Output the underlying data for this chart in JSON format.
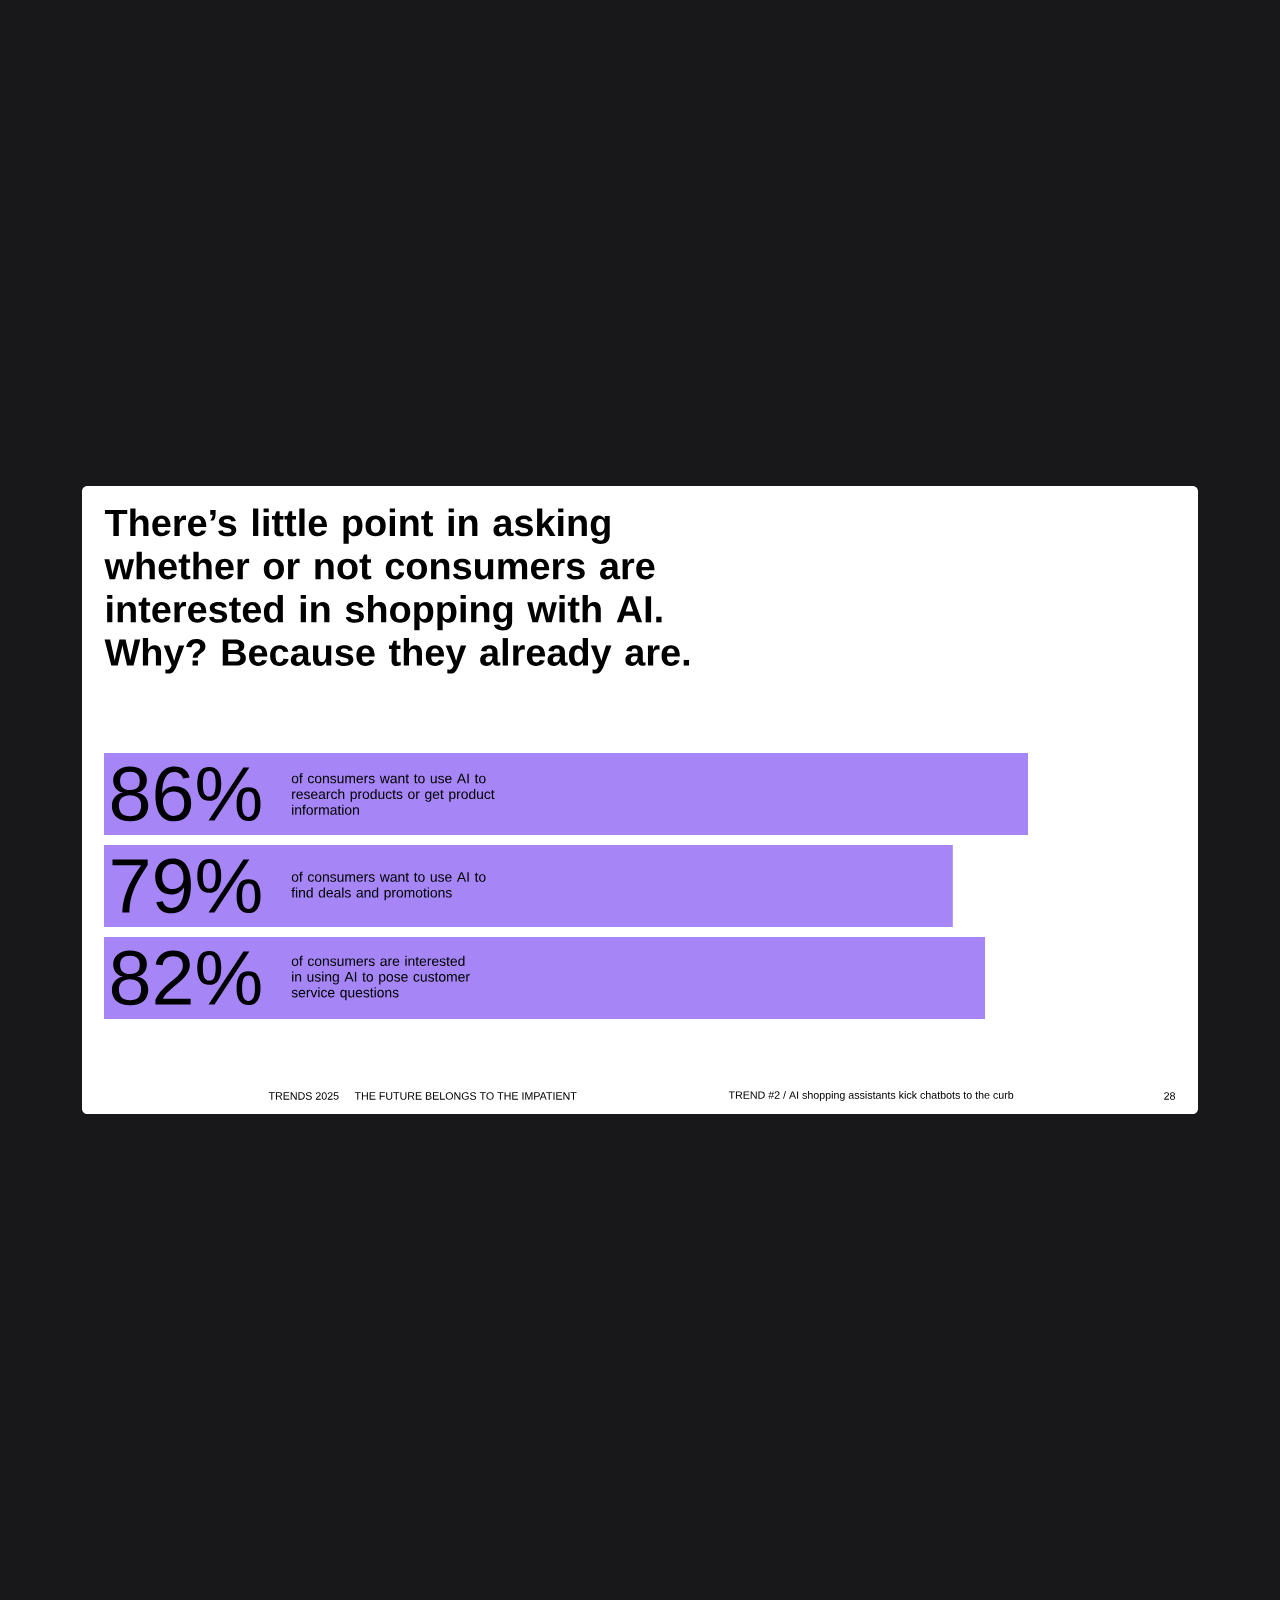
{
  "chart_data": {
    "type": "bar",
    "orientation": "horizontal",
    "title": "There’s little point in asking whether or not consumers are interested in shopping with AI. Why? Because they already are.",
    "categories": [
      "of consumers want to use AI to research products or get product information",
      "of consumers want to use AI to find deals and promotions",
      "of consumers are interested in using AI to pose customer service questions"
    ],
    "values": [
      86,
      79,
      82
    ],
    "value_labels": [
      "86%",
      "79%",
      "82%"
    ],
    "color": "#a685f7",
    "tick_labels": false,
    "annotations": [
      "TRENDS 2025",
      "THE FUTURE BELONGS TO THE IMPATIENT",
      "TREND #2 / AI shopping assistants kick chatbots to the curb",
      "28"
    ]
  }
}
